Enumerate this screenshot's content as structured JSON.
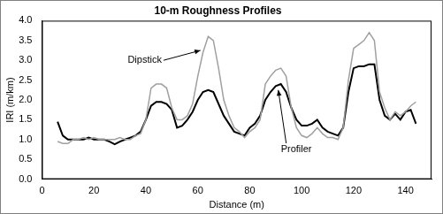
{
  "chart_data": {
    "type": "line",
    "title": "10-m Roughness Profiles",
    "x_label": "Distance (m)",
    "y_label": "IRI (m/km)",
    "x": [
      6,
      8,
      10,
      12,
      14,
      16,
      18,
      20,
      22,
      24,
      26,
      28,
      30,
      32,
      34,
      36,
      38,
      40,
      42,
      44,
      46,
      48,
      50,
      52,
      54,
      56,
      58,
      60,
      62,
      64,
      66,
      68,
      70,
      72,
      74,
      76,
      78,
      80,
      82,
      84,
      86,
      88,
      90,
      92,
      94,
      96,
      98,
      100,
      102,
      104,
      106,
      108,
      110,
      112,
      114,
      116,
      118,
      120,
      122,
      124,
      126,
      128,
      130,
      132,
      134,
      136,
      138,
      140,
      142,
      144
    ],
    "series": [
      {
        "name": "Dipstick",
        "color": "#a0a0a0",
        "values": [
          0.95,
          0.9,
          0.9,
          1.0,
          1.0,
          1.05,
          1.0,
          1.05,
          1.0,
          1.0,
          1.0,
          1.0,
          1.05,
          1.0,
          1.0,
          1.1,
          1.15,
          1.5,
          2.3,
          2.4,
          2.4,
          2.3,
          1.8,
          1.5,
          1.5,
          1.6,
          1.9,
          2.6,
          3.2,
          3.6,
          3.5,
          2.8,
          2.0,
          1.6,
          1.3,
          1.2,
          1.05,
          1.2,
          1.3,
          1.5,
          2.4,
          2.6,
          2.75,
          2.8,
          2.6,
          1.8,
          1.3,
          1.1,
          1.05,
          1.15,
          1.3,
          1.15,
          1.05,
          1.05,
          1.0,
          1.3,
          2.5,
          3.3,
          3.4,
          3.5,
          3.7,
          3.5,
          2.2,
          1.8,
          1.5,
          1.7,
          1.6,
          1.7,
          1.85,
          1.95
        ]
      },
      {
        "name": "Profiler",
        "color": "#000000",
        "values": [
          1.45,
          1.1,
          1.0,
          1.0,
          1.0,
          1.0,
          1.05,
          1.0,
          1.0,
          1.0,
          0.95,
          0.88,
          0.95,
          1.0,
          1.05,
          1.1,
          1.2,
          1.5,
          1.85,
          1.95,
          1.95,
          1.9,
          1.75,
          1.3,
          1.35,
          1.5,
          1.7,
          2.0,
          2.2,
          2.25,
          2.2,
          1.9,
          1.6,
          1.4,
          1.2,
          1.15,
          1.1,
          1.3,
          1.4,
          1.6,
          2.0,
          2.2,
          2.35,
          2.4,
          2.2,
          1.8,
          1.5,
          1.35,
          1.35,
          1.4,
          1.5,
          1.3,
          1.2,
          1.15,
          1.1,
          1.3,
          2.2,
          2.8,
          2.85,
          2.85,
          2.9,
          2.9,
          2.0,
          1.6,
          1.5,
          1.65,
          1.5,
          1.7,
          1.75,
          1.4
        ]
      }
    ],
    "annotations": [
      "Dipstick",
      "Profiler"
    ],
    "xlim": [
      0,
      150
    ],
    "xticks": [
      0,
      20,
      40,
      60,
      80,
      100,
      120,
      140
    ],
    "ylim": [
      0,
      4
    ],
    "yticks": [
      {
        "value": 0,
        "label": "0.0"
      },
      0.5,
      {
        "value": 1,
        "label": "1.0"
      },
      1.5,
      {
        "value": 2,
        "label": "2.0"
      },
      2.5,
      {
        "value": 3,
        "label": "3.0"
      },
      3.5,
      {
        "value": 4,
        "label": "4.0"
      }
    ],
    "grid": false
  }
}
